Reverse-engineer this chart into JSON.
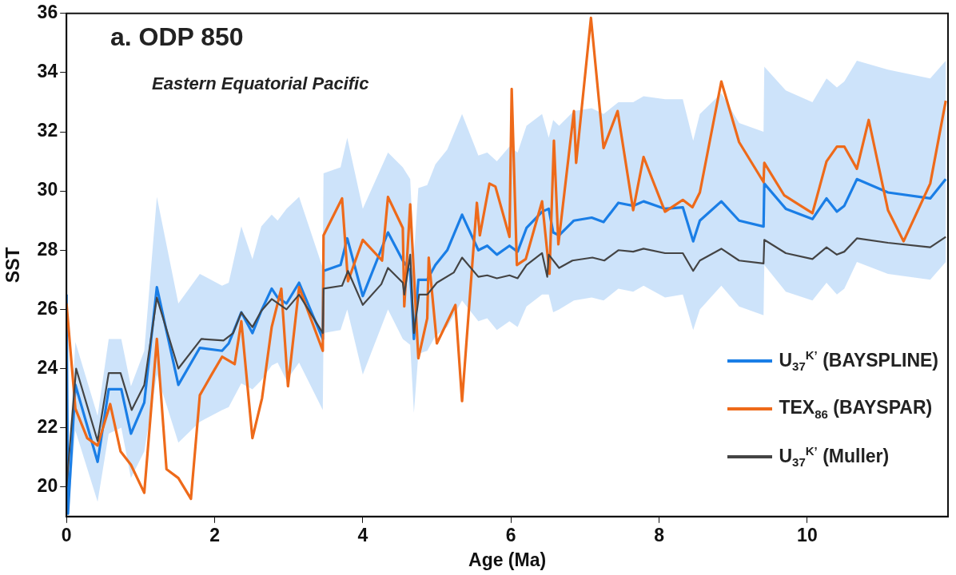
{
  "chart_data": {
    "type": "line",
    "title": "a. ODP 850",
    "subtitle": "Eastern Equatorial Pacific",
    "xlabel": "Age (Ma)",
    "ylabel": "SST",
    "xlim": [
      0,
      11.9
    ],
    "ylim": [
      19,
      36
    ],
    "xticks": [
      0,
      2,
      4,
      6,
      8,
      10
    ],
    "yticks": [
      20,
      22,
      24,
      26,
      28,
      30,
      32,
      34,
      36
    ],
    "grid": false,
    "legend": "bottom right",
    "marker": "none",
    "line_style": "solid",
    "series": [
      {
        "name": "U$_{37}$$^{K’}$ (BAYSPLINE)",
        "color": "#1a7ee6",
        "x": [
          0,
          0.02,
          0.12,
          0.42,
          0.57,
          0.74,
          0.87,
          1.05,
          1.22,
          1.51,
          1.8,
          2.1,
          2.19,
          2.36,
          2.51,
          2.63,
          2.77,
          2.85,
          2.97,
          3.14,
          3.46,
          3.47,
          3.7,
          3.79,
          4.0,
          4.34,
          4.54,
          4.64,
          4.69,
          4.75,
          4.87,
          4.98,
          5.14,
          5.34,
          5.56,
          5.68,
          5.81,
          5.98,
          6.09,
          6.21,
          6.42,
          6.51,
          6.57,
          6.65,
          6.85,
          7.09,
          7.25,
          7.45,
          7.65,
          7.79,
          8.08,
          8.32,
          8.46,
          8.55,
          8.84,
          9.08,
          9.41,
          9.42,
          9.71,
          10.07,
          10.26,
          10.4,
          10.5,
          10.67,
          11.09,
          11.66,
          11.87
        ],
        "values": [
          26.5,
          19.1,
          23.45,
          20.85,
          23.3,
          23.3,
          21.8,
          22.85,
          26.75,
          23.45,
          24.7,
          24.6,
          24.85,
          25.9,
          25.2,
          25.95,
          26.7,
          26.4,
          26.2,
          26.9,
          25.0,
          27.3,
          27.5,
          28.4,
          26.45,
          28.6,
          27.65,
          27.3,
          25.0,
          27.0,
          27.0,
          27.5,
          28.0,
          29.2,
          28.0,
          28.15,
          27.85,
          28.15,
          27.95,
          28.75,
          29.3,
          29.4,
          28.6,
          28.5,
          29.0,
          29.1,
          28.95,
          29.6,
          29.5,
          29.65,
          29.4,
          29.45,
          28.3,
          29.0,
          29.65,
          29.0,
          28.8,
          30.25,
          29.4,
          29.05,
          29.75,
          29.3,
          29.5,
          30.4,
          29.95,
          29.75,
          30.4
        ],
        "lower": [
          25.5,
          19.0,
          21.9,
          19.5,
          21.8,
          22.0,
          20.3,
          21.2,
          23.8,
          21.5,
          22.2,
          22.6,
          22.7,
          23.5,
          23.3,
          23.6,
          24.1,
          24.2,
          23.6,
          24.2,
          22.6,
          25.2,
          25.3,
          26.0,
          23.8,
          26.0,
          25.0,
          24.8,
          22.5,
          24.5,
          24.6,
          25.1,
          25.4,
          26.3,
          25.6,
          25.7,
          25.3,
          25.6,
          25.4,
          26.1,
          26.5,
          26.5,
          25.9,
          26.0,
          26.3,
          26.4,
          26.3,
          26.7,
          26.6,
          26.8,
          26.4,
          26.5,
          25.3,
          26.0,
          26.8,
          26.1,
          25.8,
          27.5,
          26.6,
          26.3,
          26.9,
          26.5,
          26.7,
          27.6,
          27.2,
          27.0,
          27.6
        ],
        "upper": [
          27.5,
          20.6,
          24.9,
          22.4,
          25.0,
          25.0,
          23.4,
          24.6,
          29.8,
          26.2,
          27.2,
          26.8,
          26.9,
          28.8,
          27.7,
          28.8,
          29.2,
          29.0,
          29.4,
          29.8,
          27.4,
          30.6,
          30.8,
          31.8,
          29.4,
          31.3,
          30.8,
          30.4,
          27.8,
          30.1,
          30.2,
          30.9,
          31.4,
          32.6,
          31.2,
          31.3,
          31.0,
          31.5,
          31.3,
          32.2,
          32.6,
          31.8,
          32.4,
          32.2,
          32.7,
          32.8,
          32.6,
          33.0,
          33.0,
          33.2,
          33.1,
          33.1,
          31.7,
          32.6,
          33.3,
          32.3,
          32.0,
          34.2,
          33.4,
          33.0,
          33.8,
          33.5,
          33.7,
          34.4,
          34.1,
          33.8,
          34.4
        ]
      },
      {
        "name": "TEX$_{86}$ (BAYSPAR)",
        "color": "#ee6a1a",
        "x": [
          0,
          0.12,
          0.28,
          0.42,
          0.59,
          0.73,
          0.87,
          1.05,
          1.22,
          1.35,
          1.51,
          1.68,
          1.8,
          1.96,
          2.1,
          2.27,
          2.36,
          2.51,
          2.64,
          2.77,
          2.9,
          2.99,
          3.14,
          3.46,
          3.47,
          3.72,
          3.8,
          4.0,
          4.26,
          4.34,
          4.54,
          4.56,
          4.64,
          4.75,
          4.87,
          4.89,
          5.0,
          5.25,
          5.34,
          5.54,
          5.58,
          5.71,
          5.79,
          5.98,
          6.01,
          6.08,
          6.2,
          6.42,
          6.52,
          6.58,
          6.64,
          6.85,
          6.88,
          7.08,
          7.25,
          7.44,
          7.65,
          7.79,
          8.08,
          8.32,
          8.45,
          8.55,
          8.84,
          9.08,
          9.41,
          9.42,
          9.69,
          10.07,
          10.26,
          10.4,
          10.5,
          10.67,
          10.83,
          11.09,
          11.3,
          11.66,
          11.87
        ],
        "values": [
          26.2,
          22.65,
          21.65,
          21.4,
          22.8,
          21.2,
          20.75,
          19.8,
          25.0,
          20.6,
          20.3,
          19.6,
          23.1,
          23.8,
          24.4,
          24.15,
          25.6,
          21.65,
          23.0,
          25.4,
          26.7,
          23.4,
          26.75,
          24.6,
          28.5,
          29.75,
          26.95,
          28.35,
          27.65,
          29.8,
          28.75,
          26.1,
          29.55,
          24.35,
          25.7,
          27.75,
          24.85,
          26.15,
          22.9,
          29.6,
          28.5,
          30.25,
          30.15,
          28.45,
          33.45,
          27.5,
          27.7,
          29.65,
          27.2,
          31.7,
          28.2,
          32.7,
          30.95,
          35.85,
          31.45,
          32.7,
          29.35,
          31.15,
          29.3,
          29.7,
          29.45,
          29.95,
          33.7,
          31.65,
          30.3,
          30.95,
          29.85,
          29.25,
          31.0,
          31.5,
          31.5,
          30.75,
          32.4,
          29.35,
          28.3,
          30.25,
          33.05
        ]
      },
      {
        "name": "U$_{37}$$^{K’}$ (Muller)",
        "color": "#444444",
        "x": [
          0,
          0.13,
          0.42,
          0.57,
          0.73,
          0.88,
          1.05,
          1.22,
          1.51,
          1.82,
          2.12,
          2.25,
          2.36,
          2.51,
          2.63,
          2.77,
          2.97,
          3.14,
          3.46,
          3.47,
          3.72,
          3.8,
          4.0,
          4.25,
          4.34,
          4.54,
          4.56,
          4.64,
          4.69,
          4.76,
          4.87,
          5.0,
          5.23,
          5.34,
          5.56,
          5.68,
          5.81,
          5.98,
          6.09,
          6.21,
          6.42,
          6.49,
          6.51,
          6.65,
          6.83,
          7.1,
          7.26,
          7.45,
          7.65,
          7.79,
          8.08,
          8.32,
          8.46,
          8.55,
          8.84,
          9.08,
          9.41,
          9.42,
          9.71,
          10.07,
          10.26,
          10.4,
          10.5,
          10.67,
          11.09,
          11.66,
          11.87
        ],
        "values": [
          20.0,
          24.0,
          21.55,
          23.85,
          23.85,
          22.6,
          23.45,
          26.4,
          24.0,
          25.0,
          24.95,
          25.2,
          25.9,
          25.4,
          25.95,
          26.35,
          26.0,
          26.5,
          25.2,
          26.7,
          26.8,
          27.3,
          26.15,
          26.85,
          27.4,
          26.9,
          26.5,
          27.85,
          25.2,
          26.5,
          26.5,
          26.9,
          27.25,
          27.75,
          27.1,
          27.15,
          27.05,
          27.15,
          27.05,
          27.5,
          27.9,
          27.1,
          27.85,
          27.4,
          27.65,
          27.75,
          27.65,
          28.0,
          27.95,
          28.05,
          27.9,
          27.9,
          27.3,
          27.65,
          28.05,
          27.65,
          27.55,
          28.35,
          27.9,
          27.7,
          28.1,
          27.85,
          27.95,
          28.4,
          28.25,
          28.1,
          28.45
        ]
      }
    ]
  }
}
